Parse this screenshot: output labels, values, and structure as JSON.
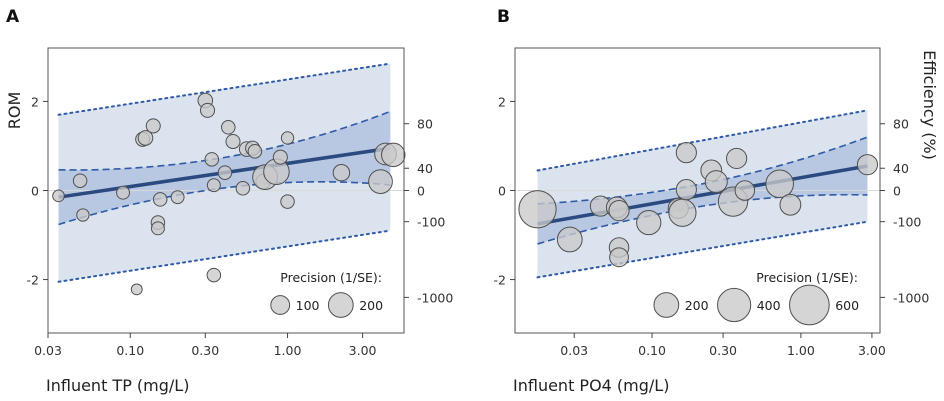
{
  "chart_data": [
    {
      "type": "scatter",
      "panel_label": "A",
      "xlabel": "Influent TP (mg/L)",
      "ylabel": "ROM",
      "right_ylabel": "",
      "xscale": "log",
      "xlim": [
        0.03,
        5.5
      ],
      "ylim": [
        -3.2,
        3.2
      ],
      "x_ticks": [
        0.03,
        0.1,
        0.3,
        1.0,
        3.0
      ],
      "x_tick_labels": [
        "0.03",
        "0.10",
        "0.30",
        "1.00",
        "3.00"
      ],
      "y_ticks": [
        -2,
        0,
        2
      ],
      "y_tick_labels": [
        "-2",
        "0",
        "2"
      ],
      "right_ticks": [
        {
          "rom": 1.5,
          "label": "80"
        },
        {
          "rom": 0.5,
          "label": "40"
        },
        {
          "rom": 0.0,
          "label": "0"
        },
        {
          "rom": -0.7,
          "label": "-100"
        },
        {
          "rom": -2.4,
          "label": "-1000"
        }
      ],
      "regression": {
        "x": [
          0.035,
          4.5
        ],
        "fit": [
          -0.15,
          0.95
        ],
        "ci_lower": [
          -0.9,
          0.15
        ],
        "ci_upper": [
          0.6,
          1.8
        ],
        "pi_lower": [
          -2.05,
          -0.9
        ],
        "pi_upper": [
          1.7,
          2.85
        ]
      },
      "points": [
        {
          "x": 0.035,
          "y": -0.12,
          "p": 25
        },
        {
          "x": 0.048,
          "y": 0.22,
          "p": 40
        },
        {
          "x": 0.05,
          "y": -0.55,
          "p": 30
        },
        {
          "x": 0.09,
          "y": -0.05,
          "p": 35
        },
        {
          "x": 0.11,
          "y": -2.22,
          "p": 20
        },
        {
          "x": 0.12,
          "y": 1.15,
          "p": 45
        },
        {
          "x": 0.125,
          "y": 1.18,
          "p": 50
        },
        {
          "x": 0.14,
          "y": 1.45,
          "p": 45
        },
        {
          "x": 0.15,
          "y": -0.72,
          "p": 40
        },
        {
          "x": 0.15,
          "y": -0.85,
          "p": 35
        },
        {
          "x": 0.155,
          "y": -0.2,
          "p": 40
        },
        {
          "x": 0.2,
          "y": -0.15,
          "p": 35
        },
        {
          "x": 0.3,
          "y": 2.02,
          "p": 50
        },
        {
          "x": 0.31,
          "y": 1.8,
          "p": 45
        },
        {
          "x": 0.33,
          "y": 0.7,
          "p": 40
        },
        {
          "x": 0.34,
          "y": 0.12,
          "p": 35
        },
        {
          "x": 0.34,
          "y": -1.9,
          "p": 40
        },
        {
          "x": 0.4,
          "y": 0.4,
          "p": 40
        },
        {
          "x": 0.42,
          "y": 1.42,
          "p": 40
        },
        {
          "x": 0.45,
          "y": 1.1,
          "p": 45
        },
        {
          "x": 0.52,
          "y": 0.05,
          "p": 40
        },
        {
          "x": 0.55,
          "y": 0.93,
          "p": 50
        },
        {
          "x": 0.6,
          "y": 0.95,
          "p": 45
        },
        {
          "x": 0.62,
          "y": 0.88,
          "p": 40
        },
        {
          "x": 0.7,
          "y": 0.2,
          "p": 50
        },
        {
          "x": 0.72,
          "y": 0.3,
          "p": 200
        },
        {
          "x": 0.85,
          "y": 0.42,
          "p": 215
        },
        {
          "x": 0.9,
          "y": 0.75,
          "p": 45
        },
        {
          "x": 1.0,
          "y": 1.18,
          "p": 30
        },
        {
          "x": 1.0,
          "y": -0.25,
          "p": 40
        },
        {
          "x": 2.2,
          "y": 0.4,
          "p": 70
        },
        {
          "x": 3.9,
          "y": 0.2,
          "p": 180
        },
        {
          "x": 4.2,
          "y": 0.82,
          "p": 145
        },
        {
          "x": 4.7,
          "y": 0.8,
          "p": 175
        }
      ],
      "legend": {
        "title": "Precision (1/SE):",
        "sizes": [
          100,
          200
        ],
        "labels": [
          "100",
          "200"
        ]
      }
    },
    {
      "type": "scatter",
      "panel_label": "B",
      "xlabel": "Influent PO4 (mg/L)",
      "ylabel": "",
      "right_ylabel": "Efficiency (%)",
      "xscale": "log",
      "xlim": [
        0.012,
        3.4
      ],
      "ylim": [
        -3.2,
        3.2
      ],
      "x_ticks": [
        0.03,
        0.1,
        0.3,
        1.0,
        3.0
      ],
      "x_tick_labels": [
        "0.03",
        "0.10",
        "0.30",
        "1.00",
        "3.00"
      ],
      "y_ticks": [
        -2,
        0,
        2
      ],
      "y_tick_labels": [
        "-2",
        "0",
        "2"
      ],
      "right_ticks": [
        {
          "rom": 1.5,
          "label": "80"
        },
        {
          "rom": 0.5,
          "label": "40"
        },
        {
          "rom": 0.0,
          "label": "0"
        },
        {
          "rom": -0.7,
          "label": "-100"
        },
        {
          "rom": -2.4,
          "label": "-1000"
        }
      ],
      "regression": {
        "x": [
          0.017,
          2.8
        ],
        "fit": [
          -0.75,
          0.55
        ],
        "ci_lower": [
          -1.3,
          -0.1
        ],
        "ci_upper": [
          -0.2,
          1.2
        ],
        "pi_lower": [
          -1.95,
          -0.7
        ],
        "pi_upper": [
          0.45,
          1.8
        ]
      },
      "points": [
        {
          "x": 0.017,
          "y": -0.42,
          "p": 520
        },
        {
          "x": 0.028,
          "y": -1.1,
          "p": 200
        },
        {
          "x": 0.045,
          "y": -0.35,
          "p": 120
        },
        {
          "x": 0.058,
          "y": -0.38,
          "p": 130
        },
        {
          "x": 0.06,
          "y": -0.45,
          "p": 120
        },
        {
          "x": 0.06,
          "y": -1.28,
          "p": 110
        },
        {
          "x": 0.06,
          "y": -1.5,
          "p": 100
        },
        {
          "x": 0.095,
          "y": -0.72,
          "p": 190
        },
        {
          "x": 0.15,
          "y": -0.4,
          "p": 120
        },
        {
          "x": 0.16,
          "y": -0.5,
          "p": 250
        },
        {
          "x": 0.17,
          "y": 0.02,
          "p": 120
        },
        {
          "x": 0.17,
          "y": 0.85,
          "p": 120
        },
        {
          "x": 0.25,
          "y": 0.45,
          "p": 130
        },
        {
          "x": 0.27,
          "y": 0.2,
          "p": 150
        },
        {
          "x": 0.35,
          "y": -0.25,
          "p": 300
        },
        {
          "x": 0.37,
          "y": 0.72,
          "p": 120
        },
        {
          "x": 0.42,
          "y": 0.0,
          "p": 110
        },
        {
          "x": 0.72,
          "y": 0.15,
          "p": 260
        },
        {
          "x": 0.85,
          "y": -0.32,
          "p": 130
        },
        {
          "x": 2.8,
          "y": 0.58,
          "p": 120
        }
      ],
      "legend": {
        "title": "Precision (1/SE):",
        "sizes": [
          200,
          400,
          600
        ],
        "labels": [
          "200",
          "400",
          "600"
        ]
      }
    }
  ],
  "colors": {
    "pi_band": "#dbe3ef",
    "ci_band": "#b9c8e2",
    "fit_line": "#2b4a80",
    "dashed": "#2f5aa6",
    "point_fill": "#c9c9c9",
    "point_stroke": "#505050",
    "frame": "#555555"
  }
}
